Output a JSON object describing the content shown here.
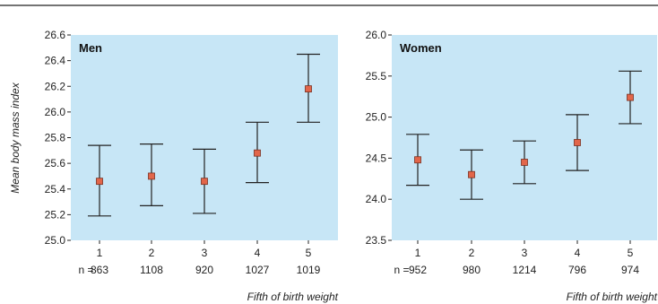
{
  "chart_data": [
    {
      "type": "scatter",
      "title": "Men",
      "ylabel": "Mean body mass index",
      "xlabel": "Fifth of birth weight",
      "categories": [
        "1",
        "2",
        "3",
        "4",
        "5"
      ],
      "n_label": "n =",
      "n": [
        "863",
        "1108",
        "920",
        "1027",
        "1019"
      ],
      "values": [
        25.46,
        25.5,
        25.46,
        25.68,
        26.18
      ],
      "ci_low": [
        25.19,
        25.27,
        25.21,
        25.45,
        25.92
      ],
      "ci_high": [
        25.74,
        25.75,
        25.71,
        25.92,
        26.45
      ],
      "ylim": [
        25.0,
        26.6
      ],
      "yticks": [
        "25.0",
        "25.2",
        "25.4",
        "25.6",
        "25.8",
        "26.0",
        "26.2",
        "26.4",
        "26.6"
      ],
      "grid": false
    },
    {
      "type": "scatter",
      "title": "Women",
      "xlabel": "Fifth of birth weight",
      "categories": [
        "1",
        "2",
        "3",
        "4",
        "5"
      ],
      "n_label": "n =",
      "n": [
        "952",
        "980",
        "1214",
        "796",
        "974"
      ],
      "values": [
        24.48,
        24.3,
        24.45,
        24.69,
        25.24
      ],
      "ci_low": [
        24.17,
        24.0,
        24.19,
        24.35,
        24.92
      ],
      "ci_high": [
        24.79,
        24.6,
        24.71,
        25.03,
        25.56
      ],
      "ylim": [
        23.5,
        26.0
      ],
      "yticks": [
        "23.5",
        "24.0",
        "24.5",
        "25.0",
        "25.5",
        "26.0"
      ],
      "grid": false
    }
  ],
  "colors": {
    "panel_bg": "#c7e6f6",
    "marker": "#e2664a",
    "marker_edge": "#7a3020",
    "errorbar": "#222222",
    "rule": "#222222"
  }
}
